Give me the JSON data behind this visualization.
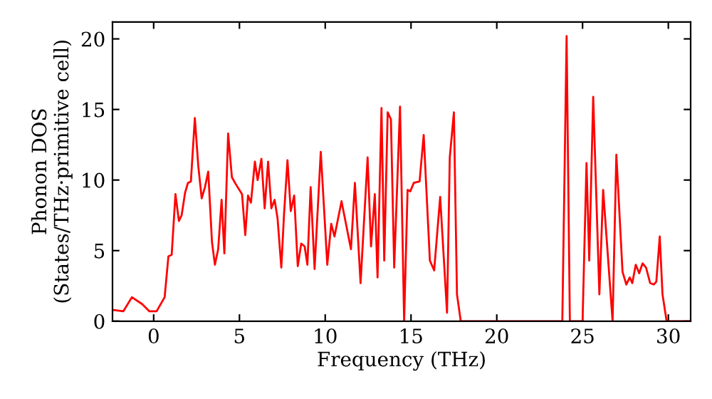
{
  "chart_data": {
    "type": "line",
    "xlabel": "Frequency (THz)",
    "ylabel": "Phonon DOS\n(States/THz·primitive cell)",
    "xlim": [
      -2.4,
      31.3
    ],
    "ylim": [
      0,
      21.2
    ],
    "xticks": [
      0,
      5,
      10,
      15,
      20,
      25,
      30
    ],
    "yticks": [
      0,
      5,
      10,
      15,
      20
    ],
    "grid": false,
    "series": [
      {
        "color": "#ff0000",
        "x": [
          -2.4,
          -1.77,
          -1.27,
          -0.66,
          -0.25,
          0.17,
          0.64,
          0.86,
          1.05,
          1.27,
          1.47,
          1.63,
          1.83,
          2.0,
          2.17,
          2.4,
          2.6,
          2.8,
          2.99,
          3.18,
          3.4,
          3.57,
          3.76,
          3.96,
          4.12,
          4.34,
          4.56,
          4.79,
          5.15,
          5.34,
          5.5,
          5.67,
          5.9,
          6.06,
          6.28,
          6.47,
          6.67,
          6.86,
          7.05,
          7.22,
          7.44,
          7.6,
          7.8,
          7.99,
          8.19,
          8.4,
          8.6,
          8.8,
          8.96,
          9.15,
          9.38,
          9.74,
          10.12,
          10.35,
          10.54,
          10.95,
          11.5,
          11.73,
          12.06,
          12.47,
          12.67,
          12.89,
          13.05,
          13.28,
          13.44,
          13.64,
          13.83,
          14.02,
          14.36,
          14.6,
          14.8,
          14.96,
          15.16,
          15.5,
          15.74,
          16.1,
          16.35,
          16.7,
          17.1,
          17.26,
          17.5,
          17.68,
          17.9,
          23.82,
          24.07,
          24.26,
          25.0,
          25.23,
          25.39,
          25.62,
          25.98,
          26.2,
          26.75,
          26.97,
          27.33,
          27.55,
          27.75,
          27.9,
          28.1,
          28.3,
          28.5,
          28.7,
          28.94,
          29.15,
          29.3,
          29.5,
          29.66,
          29.9,
          31.3
        ],
        "values": [
          0.8,
          0.7,
          1.7,
          1.2,
          0.7,
          0.7,
          1.7,
          4.6,
          4.7,
          9.0,
          7.1,
          7.5,
          9.1,
          9.8,
          9.9,
          14.4,
          11.0,
          8.7,
          9.5,
          10.6,
          5.6,
          4.0,
          5.1,
          8.6,
          4.8,
          13.3,
          10.2,
          9.7,
          9.0,
          6.1,
          8.9,
          8.4,
          11.3,
          10.0,
          11.5,
          8.0,
          11.3,
          8.0,
          8.6,
          7.3,
          3.8,
          7.6,
          11.4,
          7.8,
          8.9,
          3.9,
          5.5,
          5.3,
          4.0,
          9.5,
          3.7,
          12.0,
          4.0,
          6.9,
          6.0,
          8.5,
          5.1,
          9.8,
          2.7,
          11.6,
          5.3,
          9.0,
          3.1,
          15.1,
          4.3,
          14.8,
          14.3,
          3.8,
          15.2,
          0.0,
          9.3,
          9.2,
          9.8,
          9.9,
          13.2,
          4.3,
          3.6,
          8.8,
          0.6,
          11.6,
          14.8,
          1.9,
          0.0,
          0.0,
          20.2,
          0.0,
          0.0,
          11.2,
          4.3,
          15.9,
          1.9,
          9.3,
          0.0,
          11.8,
          3.5,
          2.6,
          3.1,
          2.7,
          4.0,
          3.4,
          4.1,
          3.8,
          2.7,
          2.6,
          2.8,
          6.0,
          1.9,
          0.0,
          0.0
        ]
      }
    ]
  }
}
